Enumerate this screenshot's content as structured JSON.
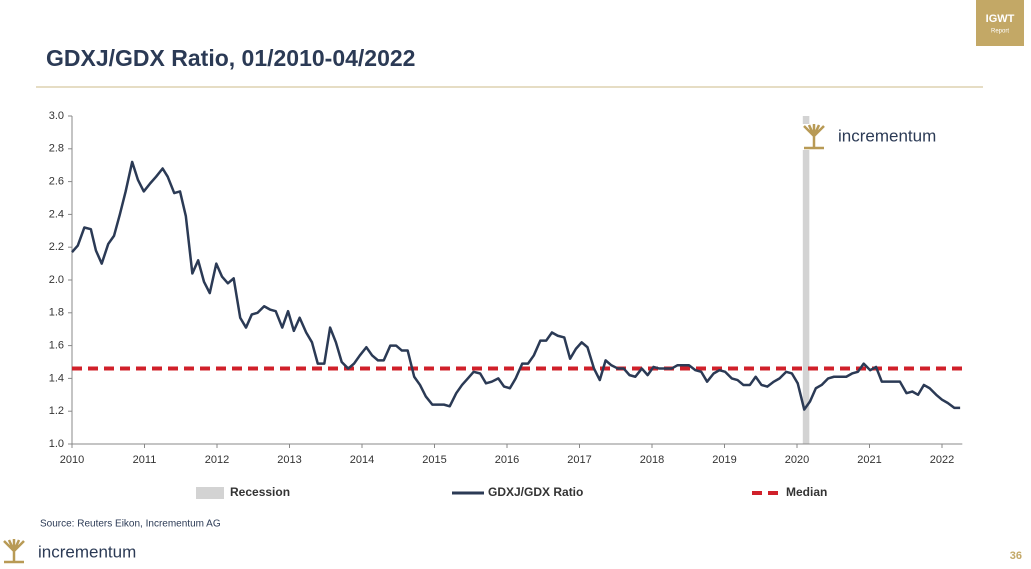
{
  "header": {
    "title": "GDXJ/GDX Ratio, 01/2010-04/2022",
    "badge": [
      "IGWT",
      "Report"
    ]
  },
  "chart_data": {
    "type": "line",
    "x": [
      2010.0,
      2010.08,
      2010.17,
      2010.26,
      2010.33,
      2010.41,
      2010.5,
      2010.58,
      2010.66,
      2010.74,
      2010.83,
      2010.91,
      2010.99,
      2011.08,
      2011.16,
      2011.25,
      2011.32,
      2011.41,
      2011.49,
      2011.57,
      2011.66,
      2011.74,
      2011.82,
      2011.9,
      2011.99,
      2012.07,
      2012.15,
      2012.23,
      2012.32,
      2012.4,
      2012.48,
      2012.56,
      2012.65,
      2012.73,
      2012.81,
      2012.9,
      2012.98,
      2013.06,
      2013.14,
      2013.23,
      2013.31,
      2013.39,
      2013.48,
      2013.56,
      2013.64,
      2013.72,
      2013.81,
      2013.89,
      2013.97,
      2014.06,
      2014.14,
      2014.22,
      2014.3,
      2014.39,
      2014.47,
      2014.55,
      2014.63,
      2014.72,
      2014.8,
      2014.88,
      2014.97,
      2015.05,
      2015.13,
      2015.21,
      2015.3,
      2015.38,
      2015.46,
      2015.54,
      2015.63,
      2015.71,
      2015.79,
      2015.88,
      2015.96,
      2016.04,
      2016.12,
      2016.21,
      2016.29,
      2016.37,
      2016.46,
      2016.54,
      2016.62,
      2016.7,
      2016.79,
      2016.87,
      2016.95,
      2017.03,
      2017.11,
      2017.2,
      2017.28,
      2017.36,
      2017.44,
      2017.53,
      2017.61,
      2017.69,
      2017.77,
      2017.86,
      2017.94,
      2018.02,
      2018.1,
      2018.19,
      2018.27,
      2018.35,
      2018.43,
      2018.51,
      2018.6,
      2018.68,
      2018.76,
      2018.85,
      2018.93,
      2019.01,
      2019.1,
      2019.18,
      2019.26,
      2019.35,
      2019.43,
      2019.51,
      2019.59,
      2019.68,
      2019.76,
      2019.85,
      2019.93,
      2020.01,
      2020.1,
      2020.18,
      2020.26,
      2020.34,
      2020.43,
      2020.51,
      2020.59,
      2020.68,
      2020.76,
      2020.84,
      2020.92,
      2021.01,
      2021.09,
      2021.17,
      2021.26,
      2021.34,
      2021.42,
      2021.51,
      2021.59,
      2021.67,
      2021.75,
      2021.83,
      2021.92,
      2022.0,
      2022.08,
      2022.17,
      2022.25
    ],
    "series": [
      {
        "name": "GDXJ/GDX Ratio",
        "color": "#2b3a55",
        "values": [
          2.17,
          2.21,
          2.32,
          2.31,
          2.18,
          2.1,
          2.22,
          2.27,
          2.4,
          2.54,
          2.72,
          2.61,
          2.54,
          2.59,
          2.63,
          2.68,
          2.63,
          2.53,
          2.54,
          2.39,
          2.04,
          2.12,
          1.99,
          1.92,
          2.1,
          2.02,
          1.98,
          2.01,
          1.77,
          1.71,
          1.79,
          1.8,
          1.84,
          1.82,
          1.81,
          1.71,
          1.81,
          1.69,
          1.77,
          1.68,
          1.62,
          1.49,
          1.49,
          1.71,
          1.62,
          1.5,
          1.46,
          1.49,
          1.54,
          1.59,
          1.54,
          1.51,
          1.51,
          1.6,
          1.6,
          1.57,
          1.57,
          1.41,
          1.36,
          1.29,
          1.24,
          1.24,
          1.24,
          1.23,
          1.31,
          1.36,
          1.4,
          1.44,
          1.43,
          1.37,
          1.38,
          1.4,
          1.35,
          1.34,
          1.4,
          1.49,
          1.49,
          1.54,
          1.63,
          1.63,
          1.68,
          1.66,
          1.65,
          1.52,
          1.58,
          1.62,
          1.59,
          1.46,
          1.39,
          1.51,
          1.48,
          1.46,
          1.46,
          1.42,
          1.41,
          1.46,
          1.42,
          1.47,
          1.46,
          1.46,
          1.46,
          1.48,
          1.48,
          1.48,
          1.45,
          1.44,
          1.38,
          1.43,
          1.45,
          1.44,
          1.4,
          1.39,
          1.36,
          1.36,
          1.41,
          1.36,
          1.35,
          1.38,
          1.4,
          1.44,
          1.43,
          1.37,
          1.21,
          1.26,
          1.34,
          1.36,
          1.4,
          1.41,
          1.41,
          1.41,
          1.43,
          1.44,
          1.49,
          1.45,
          1.47,
          1.38,
          1.38,
          1.38,
          1.38,
          1.31,
          1.32,
          1.3,
          1.36,
          1.34,
          1.3,
          1.27,
          1.25,
          1.22,
          1.22
        ]
      }
    ],
    "median": {
      "name": "Median",
      "value": 1.46,
      "color": "#d0202a"
    },
    "recession": {
      "name": "Recession",
      "color": "#d3d3d3",
      "start": 2020.08,
      "end": 2020.17
    },
    "xlim": [
      2010,
      2022.28
    ],
    "xticks": [
      2010,
      2011,
      2012,
      2013,
      2014,
      2015,
      2016,
      2017,
      2018,
      2019,
      2020,
      2021,
      2022
    ],
    "ylim": [
      1,
      3
    ],
    "yticks": [
      {
        "value": 1,
        "label": "1.0"
      },
      1.2,
      1.4,
      1.6,
      1.8,
      {
        "value": 2,
        "label": "2.0"
      },
      2.2,
      2.4,
      2.6,
      2.8,
      {
        "value": 3,
        "label": "3.0"
      }
    ],
    "logo": "incrementum"
  },
  "footer": {
    "source": "Source: Reuters Eikon, Incrementum AG",
    "logo": "incrementum",
    "page": "36"
  }
}
